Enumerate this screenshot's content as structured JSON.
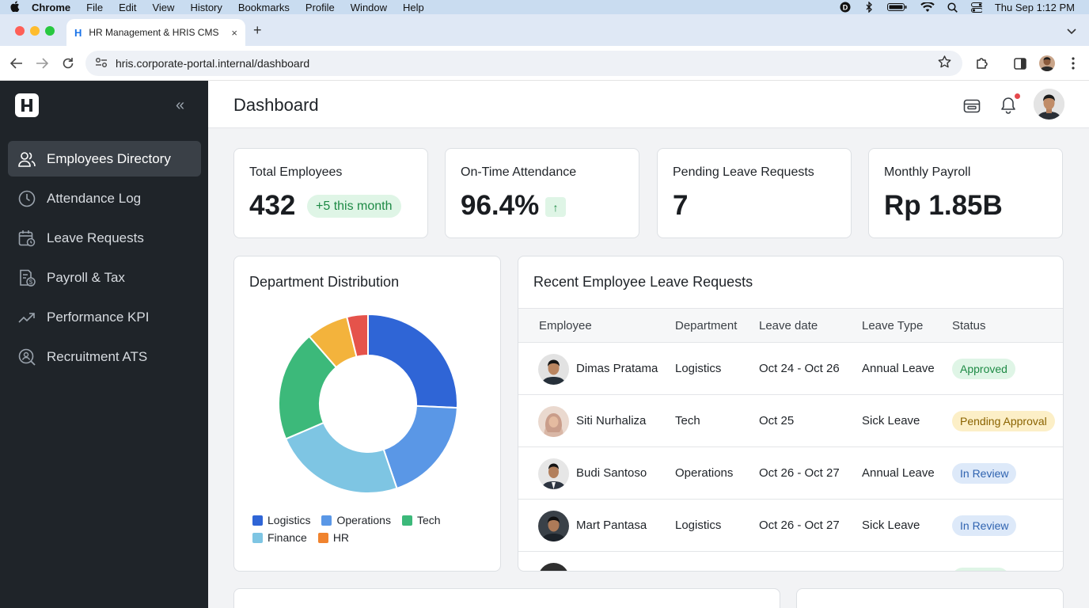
{
  "menubar": {
    "app": "Chrome",
    "menus": [
      "File",
      "Edit",
      "View",
      "History",
      "Bookmarks",
      "Profile",
      "Window",
      "Help"
    ],
    "clock": "Thu Sep 1:12 PM"
  },
  "browser": {
    "tab_title": "HR Management & HRIS CMS",
    "tab_favicon": "H",
    "tab_close": "×",
    "new_tab": "+",
    "url": "hris.corporate-portal.internal/dashboard"
  },
  "sidebar": {
    "logo": "H",
    "collapse_icon": "«",
    "items": [
      {
        "label": "Employees Directory",
        "icon": "users-icon",
        "active": true
      },
      {
        "label": "Attendance Log",
        "icon": "clock-icon"
      },
      {
        "label": "Leave Requests",
        "icon": "calendar-icon"
      },
      {
        "label": "Payroll & Tax",
        "icon": "payroll-icon"
      },
      {
        "label": "Performance KPI",
        "icon": "trend-icon"
      },
      {
        "label": "Recruitment ATS",
        "icon": "recruit-search-icon"
      }
    ]
  },
  "header": {
    "title": "Dashboard"
  },
  "stats": [
    {
      "label": "Total Employees",
      "value": "432",
      "badge": "+5 this month"
    },
    {
      "label": "On-Time Attendance",
      "value": "96.4%",
      "trend": "↑"
    },
    {
      "label": "Pending Leave Requests",
      "value": "7"
    },
    {
      "label": "Monthly Payroll",
      "value": "Rp 1.85B"
    }
  ],
  "department": {
    "title": "Department Distribution",
    "legend": [
      "Logistics",
      "Operations",
      "Tech",
      "Finance",
      "HR"
    ]
  },
  "chart_data": {
    "type": "pie",
    "title": "Department Distribution",
    "categories": [
      "Logistics",
      "Operations",
      "Tech",
      "Finance",
      "HR"
    ],
    "values": [
      27,
      20,
      21,
      25,
      7
    ],
    "slice_order_clockwise_from_top": [
      "Logistics",
      "Operations",
      "Finance",
      "Tech",
      "HR-orange",
      "HR-red"
    ],
    "colors": {
      "Logistics": "#2f65d6",
      "Operations": "#5a97e6",
      "Finance": "#7ec5e3",
      "Tech": "#3cb97a",
      "HR": "#f0832e"
    },
    "extra_slices": [
      {
        "color": "#f3b33c",
        "value": 8
      },
      {
        "color": "#e5534b",
        "value": 4
      }
    ],
    "donut": true,
    "legend_position": "bottom"
  },
  "leave": {
    "title": "Recent Employee Leave Requests",
    "columns": [
      "Employee",
      "Department",
      "Leave date",
      "Leave Type",
      "Status"
    ],
    "rows": [
      {
        "name": "Dimas Pratama",
        "dept": "Logistics",
        "date": "Oct 24 - Oct 26",
        "type": "Annual Leave",
        "status": "Approved",
        "kind": "approved"
      },
      {
        "name": "Siti Nurhaliza",
        "dept": "Tech",
        "date": "Oct 25",
        "type": "Sick Leave",
        "status": "Pending Approval",
        "kind": "pending"
      },
      {
        "name": "Budi Santoso",
        "dept": "Operations",
        "date": "Oct 26 - Oct 27",
        "type": "Annual Leave",
        "status": "In Review",
        "kind": "review"
      },
      {
        "name": "Mart Pantasa",
        "dept": "Logistics",
        "date": "Oct 26 - Oct 27",
        "type": "Sick Leave",
        "status": "In Review",
        "kind": "review"
      }
    ]
  }
}
